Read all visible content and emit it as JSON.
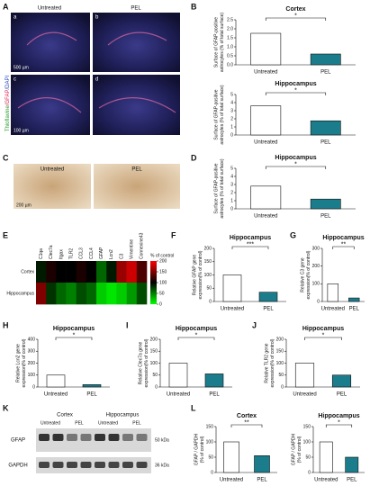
{
  "figures": {
    "A": {
      "panel": "A",
      "labels": [
        "Untreated",
        "PEL"
      ],
      "sub": [
        "a",
        "b",
        "c",
        "d"
      ],
      "stain": [
        "Thioflavine",
        "/GFAP",
        "/DAPI"
      ],
      "scale": [
        "500 µm",
        "100 µm"
      ]
    },
    "C": {
      "panel": "C",
      "labels": [
        "Untreated",
        "PEL"
      ],
      "scale": "200 µm"
    },
    "K": {
      "panel": "K",
      "groups": [
        "Cortex",
        "Hippocampus"
      ],
      "lanes": [
        "Untreated",
        "PEL",
        "Untreated",
        "PEL"
      ],
      "proteins": [
        "GFAP",
        "GAPDH"
      ],
      "sizes": [
        "50 kDa",
        "36 kDa"
      ]
    }
  },
  "chart_data": [
    {
      "type": "bar",
      "panel": "B",
      "title": "Cortex",
      "ylabel": [
        "Surface of GFAP-positive",
        "astrocytes (% of total surface)"
      ],
      "categories": [
        "Untreated",
        "PEL"
      ],
      "values": [
        1.75,
        0.6
      ],
      "colors": [
        "#ffffff",
        "#1b7d8c"
      ],
      "ylim": [
        0,
        2.5
      ],
      "yticks": [
        {
          "value": 0,
          "label": "0.0"
        },
        {
          "value": 0.5,
          "label": "0.5"
        },
        {
          "value": 1,
          "label": "1.0"
        },
        {
          "value": 1.5,
          "label": "1.5"
        },
        {
          "value": 2,
          "label": "2.0"
        },
        {
          "value": 2.5,
          "label": "2.5"
        }
      ],
      "significance": "*"
    },
    {
      "type": "bar",
      "title": "Hippocampus",
      "ylabel": [
        "Surface of GFAP-positive",
        "astrocytes (% of total surface)"
      ],
      "categories": [
        "Untreated",
        "PEL"
      ],
      "values": [
        3.6,
        1.75
      ],
      "colors": [
        "#ffffff",
        "#1b7d8c"
      ],
      "ylim": [
        0,
        5
      ],
      "yticks": [
        0,
        1,
        2,
        3,
        4,
        5
      ],
      "significance": "*"
    },
    {
      "type": "bar",
      "panel": "D",
      "title": "Hippocampus",
      "ylabel": [
        "Surface of GFAP-positive",
        "astrocytes (% of total surface)"
      ],
      "categories": [
        "Untreated",
        "PEL"
      ],
      "values": [
        2.8,
        1.2
      ],
      "colors": [
        "#ffffff",
        "#1b7d8c"
      ],
      "ylim": [
        0,
        5
      ],
      "yticks": [
        0,
        1,
        2,
        3,
        4,
        5
      ],
      "significance": "*"
    },
    {
      "type": "heatmap",
      "panel": "E",
      "columns": [
        "C1qa",
        "Clec7a",
        "Itgax",
        "TLR2",
        "CCL3",
        "CCL4",
        "GFAP",
        "Lcn2",
        "C3",
        "Vimentine",
        "Connexine43"
      ],
      "rows": [
        "Cortex",
        "Hippocampus"
      ],
      "values": [
        [
          90,
          110,
          100,
          100,
          110,
          100,
          60,
          90,
          160,
          180,
          130
        ],
        [
          150,
          80,
          60,
          50,
          70,
          60,
          20,
          10,
          20,
          40,
          70
        ]
      ],
      "clim": [
        0,
        200
      ],
      "cticks": [
        0,
        50,
        100,
        150,
        200
      ],
      "clabel": "% of control"
    },
    {
      "type": "bar",
      "panel": "F",
      "title": "Hippocampus",
      "ylabel": [
        "Relative GFAP gene",
        "expression(% of control)"
      ],
      "categories": [
        "Untreated",
        "PEL"
      ],
      "values": [
        100,
        35
      ],
      "colors": [
        "#ffffff",
        "#1b7d8c"
      ],
      "ylim": [
        0,
        200
      ],
      "yticks": [
        0,
        50,
        100,
        150,
        200
      ],
      "significance": "***"
    },
    {
      "type": "bar",
      "panel": "G",
      "title": "Hippocampus",
      "ylabel": [
        "Relative C3 gene",
        "expression(% of control)"
      ],
      "categories": [
        "Untreated",
        "PEL"
      ],
      "values": [
        100,
        20
      ],
      "colors": [
        "#ffffff",
        "#1b7d8c"
      ],
      "ylim": [
        0,
        300
      ],
      "yticks": [
        0,
        100,
        200,
        300
      ],
      "significance": "**"
    },
    {
      "type": "bar",
      "panel": "H",
      "title": "Hippocampus",
      "ylabel": [
        "Relative Lcn2 gene",
        "expression(% of control)"
      ],
      "categories": [
        "Untreated",
        "PEL"
      ],
      "values": [
        100,
        20
      ],
      "colors": [
        "#ffffff",
        "#1b7d8c"
      ],
      "ylim": [
        0,
        400
      ],
      "yticks": [
        0,
        100,
        200,
        300,
        400
      ],
      "significance": "*"
    },
    {
      "type": "bar",
      "panel": "I",
      "title": "Hippocampus",
      "ylabel": [
        "Relative Clec7a gene",
        "expression(% of control)"
      ],
      "categories": [
        "Untreated",
        "PEL"
      ],
      "values": [
        100,
        55
      ],
      "colors": [
        "#ffffff",
        "#1b7d8c"
      ],
      "ylim": [
        0,
        200
      ],
      "yticks": [
        0,
        50,
        100,
        150,
        200
      ],
      "significance": "*"
    },
    {
      "type": "bar",
      "panel": "J",
      "title": "Hippocampus",
      "ylabel": [
        "Relative TLR2 gene",
        "expression(% of control)"
      ],
      "categories": [
        "Untreated",
        "PEL"
      ],
      "values": [
        100,
        50
      ],
      "colors": [
        "#ffffff",
        "#1b7d8c"
      ],
      "ylim": [
        0,
        200
      ],
      "yticks": [
        0,
        50,
        100,
        150,
        200
      ],
      "significance": "*"
    },
    {
      "type": "bar",
      "panel": "L",
      "title": "Cortex",
      "ylabel": [
        "GFAP / GAPDH",
        "(% of control)"
      ],
      "categories": [
        "Untreated",
        "PEL"
      ],
      "values": [
        100,
        55
      ],
      "colors": [
        "#ffffff",
        "#1b7d8c"
      ],
      "ylim": [
        0,
        150
      ],
      "yticks": [
        0,
        50,
        100,
        150
      ],
      "significance": "**"
    },
    {
      "type": "bar",
      "title": "Hippocampus",
      "ylabel": [
        "GFAP / GAPDH",
        "(% of control)"
      ],
      "categories": [
        "Untreated",
        "PEL"
      ],
      "values": [
        100,
        50
      ],
      "colors": [
        "#ffffff",
        "#1b7d8c"
      ],
      "ylim": [
        0,
        150
      ],
      "yticks": [
        0,
        50,
        100,
        150
      ],
      "significance": "*"
    }
  ]
}
